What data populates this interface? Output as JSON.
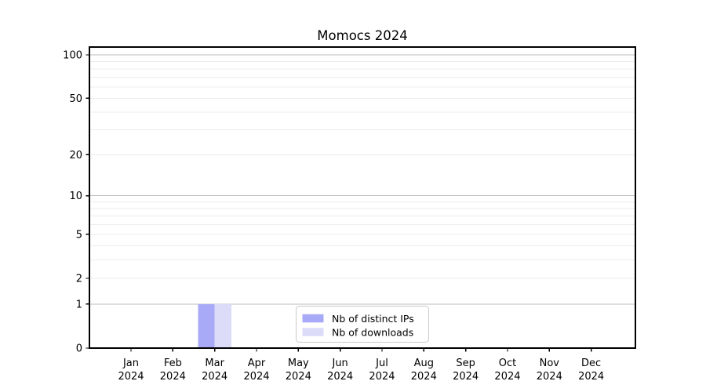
{
  "window": {
    "background": "#ffffff"
  },
  "chart_data": {
    "type": "bar",
    "title": "Momocs 2024",
    "categories": [
      "Jan 2024",
      "Feb 2024",
      "Mar 2024",
      "Apr 2024",
      "May 2024",
      "Jun 2024",
      "Jul 2024",
      "Aug 2024",
      "Sep 2024",
      "Oct 2024",
      "Nov 2024",
      "Dec 2024"
    ],
    "series": [
      {
        "name": "Nb of distinct IPs",
        "color": "#a9aaf7",
        "values": [
          0,
          0,
          1,
          0,
          0,
          0,
          0,
          0,
          0,
          0,
          0,
          0
        ]
      },
      {
        "name": "Nb of downloads",
        "color": "#dcdcf9",
        "values": [
          0,
          0,
          1,
          0,
          0,
          0,
          0,
          0,
          0,
          0,
          0,
          0
        ]
      }
    ],
    "xlabel": "",
    "ylabel": "",
    "yscale": "log1p",
    "ylim": [
      0,
      113
    ],
    "yticks": [
      0,
      1,
      2,
      5,
      10,
      20,
      50,
      100
    ],
    "major_gridlines": [
      1,
      10,
      100
    ],
    "minor_gridlines": [
      2,
      3,
      4,
      5,
      6,
      7,
      8,
      9,
      20,
      30,
      40,
      50,
      60,
      70,
      80,
      90
    ],
    "grid": "horizontal",
    "legend": {
      "position": "bottom-center",
      "items": [
        "Nb of distinct IPs",
        "Nb of downloads"
      ]
    },
    "colors": {
      "axis": "#000000",
      "text": "#000000",
      "major_grid": "#bdbdbd",
      "minor_grid": "#ececec",
      "legend_border": "#c9c9c9",
      "legend_bg": "#ffffff",
      "bar_distinct_ips": "#a9aaf7",
      "bar_downloads": "#dcdcf9"
    }
  }
}
